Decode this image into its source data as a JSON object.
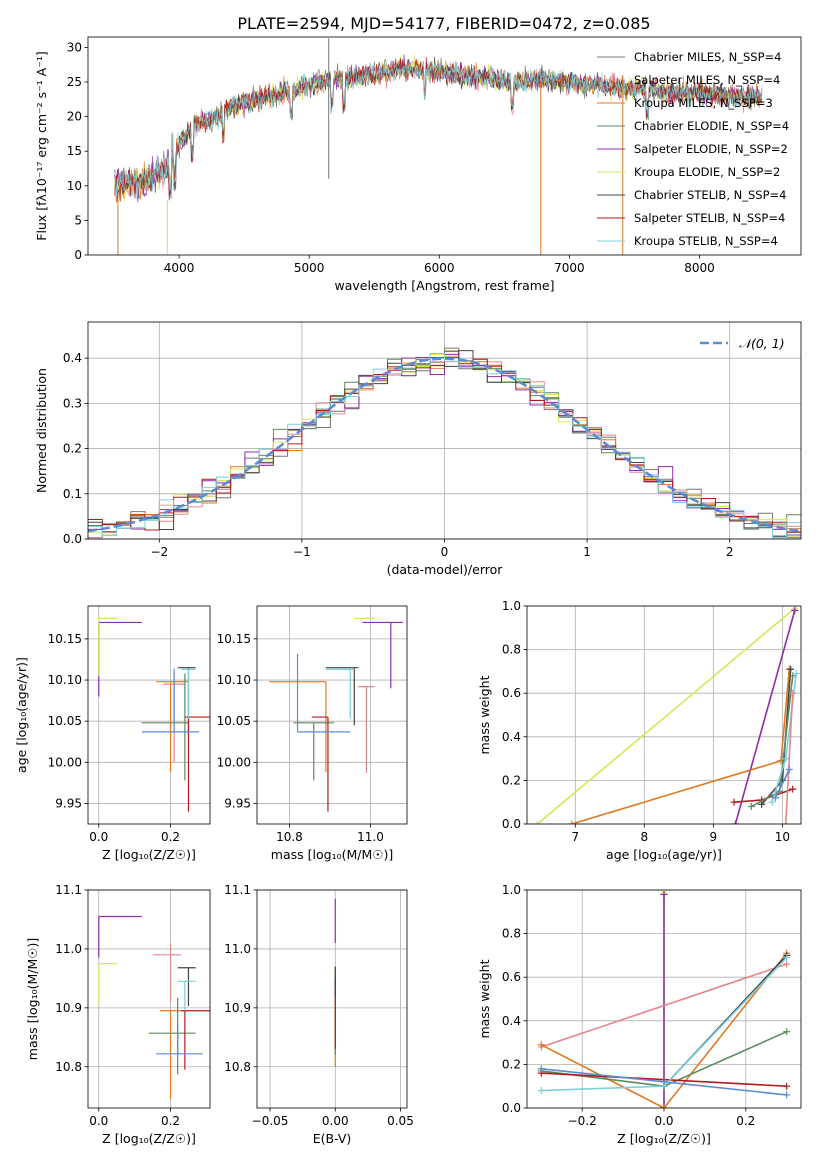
{
  "figure": {
    "title": "PLATE=2594, MJD=54177, FIBERID=0472, z=0.085"
  },
  "chart_data": [
    {
      "id": "spectrum",
      "type": "line",
      "xlabel": "wavelength [Angstrom, rest frame]",
      "ylabel": "Flux [fλ10⁻¹⁷ erg cm⁻² s⁻¹ A⁻¹]",
      "xlim": [
        3300,
        8780
      ],
      "ylim": [
        0,
        31.5
      ],
      "xticks": [
        4000,
        5000,
        6000,
        7000,
        8000
      ],
      "yticks": [
        0,
        5,
        10,
        15,
        20,
        25,
        30
      ],
      "x_range": [
        3505,
        8480
      ],
      "continuum": {
        "x": [
          3505,
          3600,
          3700,
          3800,
          3900,
          4000,
          4100,
          4200,
          4300,
          4400,
          4600,
          4800,
          5000,
          5200,
          5400,
          5600,
          5800,
          6000,
          6200,
          6400,
          6600,
          6800,
          7000,
          7200,
          7400,
          7600,
          7800,
          8000,
          8200,
          8480
        ],
        "y": [
          10.0,
          10.5,
          10.5,
          11.5,
          12.5,
          16.0,
          18.5,
          19.5,
          20.0,
          21.5,
          22.5,
          23.5,
          24.5,
          25.5,
          26.0,
          26.5,
          27.0,
          26.5,
          26.0,
          25.5,
          25.0,
          25.5,
          25.0,
          24.5,
          24.0,
          24.0,
          23.5,
          23.5,
          23.0,
          22.8
        ]
      },
      "series": [
        {
          "name": "Chabrier MILES, N_SSP=4",
          "color": "#777777"
        },
        {
          "name": "Salpeter MILES, N_SSP=4",
          "color": "#e6868f"
        },
        {
          "name": "Kroupa MILES, N_SSP=3",
          "color": "#de7a22"
        },
        {
          "name": "Chabrier ELODIE, N_SSP=4",
          "color": "#5f8a5f"
        },
        {
          "name": "Salpeter ELODIE, N_SSP=2",
          "color": "#8e2fa8"
        },
        {
          "name": "Kroupa ELODIE, N_SSP=2",
          "color": "#d6e65a"
        },
        {
          "name": "Chabrier STELIB, N_SSP=4",
          "color": "#444444"
        },
        {
          "name": "Salpeter STELIB, N_SSP=4",
          "color": "#b01c1c"
        },
        {
          "name": "Kroupa STELIB, N_SSP=4",
          "color": "#7ccfdc"
        }
      ],
      "spikes": [
        {
          "x": 3530,
          "y_from": 9,
          "y_to": 0,
          "color": "#de7a22"
        },
        {
          "x": 3910,
          "y_from": 8,
          "y_to": 0,
          "color": "#d6e65a"
        },
        {
          "x": 5150,
          "y_from": 31.3,
          "y_to": 11.0,
          "color": "#777777"
        },
        {
          "x": 6780,
          "y_from": 25,
          "y_to": 0,
          "color": "#de7a22"
        },
        {
          "x": 7410,
          "y_from": 26,
          "y_to": 0,
          "color": "#de7a22"
        }
      ]
    },
    {
      "id": "residuals",
      "type": "histogram",
      "xlabel": "(data-model)/error",
      "ylabel": "Normed distribution",
      "xlim": [
        -2.5,
        2.5
      ],
      "ylim": [
        0,
        0.48
      ],
      "xticks": [
        -2,
        -1,
        0,
        1,
        2
      ],
      "yticks": [
        0.0,
        0.1,
        0.2,
        0.3,
        0.4
      ],
      "legend": "top-right",
      "reference": {
        "name": "𝒩(0, 1)",
        "color": "#5a8ad8",
        "style": "dashed"
      },
      "series_colors": [
        "#777777",
        "#e6868f",
        "#de7a22",
        "#5f8a5f",
        "#8e2fa8",
        "#d6e65a",
        "#444444",
        "#b01c1c",
        "#7ccfdc"
      ],
      "bin_width": 0.1
    },
    {
      "id": "age-vs-Z",
      "type": "errorbar",
      "xlabel": "Z [log₁₀(Z/Z☉)]",
      "ylabel": "age  [log₁₀(age/yr)]",
      "xlim": [
        -0.03,
        0.31
      ],
      "ylim": [
        9.925,
        10.19
      ],
      "xticks": [
        0.0,
        0.2
      ],
      "yticks": [
        9.95,
        10.0,
        10.05,
        10.1,
        10.15
      ],
      "points": [
        {
          "x": 0.25,
          "y": 10.115,
          "xerr": [
            0.03,
            0.02
          ],
          "yerr": [
            0.08,
            0.0
          ],
          "color": "#444444"
        },
        {
          "x": 0.2,
          "y": 10.098,
          "xerr": [
            0.04,
            0.05
          ],
          "yerr": [
            0.11,
            0.0
          ],
          "color": "#de7a22"
        },
        {
          "x": 0.21,
          "y": 10.095,
          "xerr": [
            0.03,
            0.03
          ],
          "yerr": [
            0.095,
            0.015
          ],
          "color": "#e6868f"
        },
        {
          "x": 0.24,
          "y": 10.048,
          "xerr": [
            0.12,
            0.01
          ],
          "yerr": [
            0.07,
            0.06
          ],
          "color": "#5f8a5f"
        },
        {
          "x": 0.25,
          "y": 10.055,
          "xerr": [
            0.01,
            0.06
          ],
          "yerr": [
            0.115,
            0.0
          ],
          "color": "#b01c1c"
        },
        {
          "x": 0.21,
          "y": 10.037,
          "xerr": [
            0.09,
            0.07
          ],
          "yerr": [
            0.0,
            0.077
          ],
          "color": "#5a8ad8"
        },
        {
          "x": 0.25,
          "y": 10.113,
          "xerr": [
            0.02,
            0.02
          ],
          "yerr": [
            0.06,
            0.0
          ],
          "color": "#7ccfdc"
        },
        {
          "x": 0.0,
          "y": 10.17,
          "xerr": [
            0.0,
            0.12
          ],
          "yerr": [
            0.09,
            0.0
          ],
          "color": "#8e2fa8"
        },
        {
          "x": 0.0,
          "y": 10.175,
          "xerr": [
            0.0,
            0.05
          ],
          "yerr": [
            0.07,
            0.0
          ],
          "color": "#d6e65a"
        }
      ]
    },
    {
      "id": "age-vs-mass",
      "type": "errorbar",
      "xlabel": "mass [log₁₀(M/M☉)]",
      "ylabel": "",
      "xlim": [
        10.72,
        11.09
      ],
      "ylim": [
        9.925,
        10.19
      ],
      "xticks": [
        10.8,
        11.0
      ],
      "yticks": [
        9.95,
        10.0,
        10.05,
        10.1,
        10.15
      ],
      "points": [
        {
          "x": 10.96,
          "y": 10.115,
          "xerr": [
            0.07,
            0.01
          ],
          "yerr": [
            0.07,
            0.0
          ],
          "color": "#444444"
        },
        {
          "x": 10.89,
          "y": 10.098,
          "xerr": [
            0.14,
            0.0
          ],
          "yerr": [
            0.11,
            0.0
          ],
          "color": "#de7a22"
        },
        {
          "x": 10.99,
          "y": 10.092,
          "xerr": [
            0.02,
            0.02
          ],
          "yerr": [
            0.105,
            0.0
          ],
          "color": "#e6868f"
        },
        {
          "x": 10.86,
          "y": 10.048,
          "xerr": [
            0.05,
            0.05
          ],
          "yerr": [
            0.07,
            0.0
          ],
          "color": "#5f8a5f"
        },
        {
          "x": 10.895,
          "y": 10.055,
          "xerr": [
            0.04,
            0.0
          ],
          "yerr": [
            0.115,
            0.0
          ],
          "color": "#b01c1c"
        },
        {
          "x": 10.82,
          "y": 10.037,
          "xerr": [
            0.0,
            0.13
          ],
          "yerr": [
            0.0,
            0.095
          ],
          "color": "#5a8ad8"
        },
        {
          "x": 10.95,
          "y": 10.113,
          "xerr": [
            0.06,
            0.01
          ],
          "yerr": [
            0.06,
            0.0
          ],
          "color": "#7ccfdc"
        },
        {
          "x": 11.05,
          "y": 10.17,
          "xerr": [
            0.07,
            0.03
          ],
          "yerr": [
            0.08,
            0.0
          ],
          "color": "#8e2fa8"
        },
        {
          "x": 10.96,
          "y": 10.175,
          "xerr": [
            0.0,
            0.05
          ],
          "yerr": [
            0.0,
            0.0
          ],
          "color": "#d6e65a"
        }
      ]
    },
    {
      "id": "weight-vs-age",
      "type": "line",
      "xlabel": "age  [log₁₀(age/yr)]",
      "ylabel": "mass weight",
      "xlim": [
        6.3,
        10.27
      ],
      "ylim": [
        0,
        1
      ],
      "xticks": [
        7,
        8,
        9,
        10
      ],
      "yticks": [
        0.0,
        0.2,
        0.4,
        0.6,
        0.8,
        1.0
      ],
      "series": [
        {
          "color": "#d6e65a",
          "points": [
            [
              6.45,
              0.0
            ],
            [
              10.18,
              0.99
            ]
          ]
        },
        {
          "color": "#8e2fa8",
          "points": [
            [
              9.32,
              0.0
            ],
            [
              10.18,
              0.98
            ]
          ]
        },
        {
          "color": "#de7a22",
          "points": [
            [
              6.95,
              0.0
            ],
            [
              9.98,
              0.29
            ],
            [
              10.1,
              0.71
            ]
          ]
        },
        {
          "color": "#b01c1c",
          "points": [
            [
              9.3,
              0.1
            ],
            [
              9.7,
              0.11
            ],
            [
              10.15,
              0.16
            ]
          ]
        },
        {
          "color": "#444444",
          "points": [
            [
              9.7,
              0.09
            ],
            [
              10.0,
              0.2
            ],
            [
              10.12,
              0.71
            ]
          ]
        },
        {
          "color": "#5f8a5f",
          "points": [
            [
              9.55,
              0.08
            ],
            [
              9.96,
              0.15
            ],
            [
              10.15,
              0.68
            ]
          ]
        },
        {
          "color": "#7ccfdc",
          "points": [
            [
              9.85,
              0.1
            ],
            [
              10.05,
              0.3
            ],
            [
              10.2,
              0.69
            ]
          ]
        },
        {
          "color": "#e6868f",
          "points": [
            [
              10.05,
              0.0
            ],
            [
              10.15,
              0.6
            ]
          ]
        },
        {
          "color": "#5a8ad8",
          "points": [
            [
              9.9,
              0.12
            ],
            [
              10.1,
              0.25
            ]
          ]
        }
      ]
    },
    {
      "id": "mass-vs-Z",
      "type": "errorbar",
      "xlabel": "Z [log₁₀(Z/Z☉)]",
      "ylabel": "mass [log₁₀(M/M☉)]",
      "xlim": [
        -0.03,
        0.31
      ],
      "ylim": [
        10.73,
        11.1
      ],
      "xticks": [
        0.0,
        0.2
      ],
      "yticks": [
        10.8,
        10.9,
        11.0,
        11.1
      ],
      "points": [
        {
          "x": 0.25,
          "y": 10.968,
          "xerr": [
            0.03,
            0.02
          ],
          "yerr": [
            0.065,
            0.0
          ],
          "color": "#444444"
        },
        {
          "x": 0.2,
          "y": 10.895,
          "xerr": [
            0.03,
            0.05
          ],
          "yerr": [
            0.15,
            0.0
          ],
          "color": "#de7a22"
        },
        {
          "x": 0.2,
          "y": 10.99,
          "xerr": [
            0.05,
            0.03
          ],
          "yerr": [
            0.08,
            0.02
          ],
          "color": "#e6868f"
        },
        {
          "x": 0.22,
          "y": 10.857,
          "xerr": [
            0.08,
            0.05
          ],
          "yerr": [
            0.07,
            0.06
          ],
          "color": "#5f8a5f"
        },
        {
          "x": 0.24,
          "y": 10.895,
          "xerr": [
            0.01,
            0.07
          ],
          "yerr": [
            0.1,
            0.0
          ],
          "color": "#b01c1c"
        },
        {
          "x": 0.22,
          "y": 10.822,
          "xerr": [
            0.06,
            0.07
          ],
          "yerr": [
            0.0,
            0.05
          ],
          "color": "#5a8ad8"
        },
        {
          "x": 0.24,
          "y": 10.945,
          "xerr": [
            0.02,
            0.03
          ],
          "yerr": [
            0.05,
            0.0
          ],
          "color": "#7ccfdc"
        },
        {
          "x": 0.0,
          "y": 11.055,
          "xerr": [
            0.0,
            0.12
          ],
          "yerr": [
            0.07,
            0.0
          ],
          "color": "#8e2fa8"
        },
        {
          "x": 0.0,
          "y": 10.975,
          "xerr": [
            0.0,
            0.05
          ],
          "yerr": [
            0.07,
            0.0
          ],
          "color": "#d6e65a"
        }
      ]
    },
    {
      "id": "mass-vs-ebv",
      "type": "errorbar",
      "xlabel": "E(B-V)",
      "ylabel": "",
      "xlim": [
        -0.06,
        0.055
      ],
      "ylim": [
        10.73,
        11.1
      ],
      "xticks": [
        -0.05,
        0.0,
        0.05
      ],
      "yticks": [
        10.8,
        10.9,
        11.0,
        11.1
      ],
      "points": [
        {
          "x": 0.0,
          "y": 11.05,
          "xerr": [
            0.0,
            0.0
          ],
          "yerr": [
            0.04,
            0.035
          ],
          "color": "#8e2fa8"
        },
        {
          "x": 0.0,
          "y": 10.97,
          "xerr": [
            0.0,
            0.0
          ],
          "yerr": [
            0.04,
            0.0
          ],
          "color": "#d6e65a"
        },
        {
          "x": 0.0,
          "y": 10.9,
          "xerr": [
            0.0,
            0.0
          ],
          "yerr": [
            0.1,
            0.07
          ],
          "color": "#de7a22"
        },
        {
          "x": 0.0,
          "y": 10.86,
          "xerr": [
            0.0,
            0.0
          ],
          "yerr": [
            0.04,
            0.1
          ],
          "color": "#5f8a5f"
        },
        {
          "x": 0.0,
          "y": 10.87,
          "xerr": [
            0.0,
            0.0
          ],
          "yerr": [
            0.04,
            0.08
          ],
          "color": "#b01c1c"
        },
        {
          "x": 0.0,
          "y": 10.95,
          "xerr": [
            0.0,
            0.0
          ],
          "yerr": [
            0.03,
            0.02
          ],
          "color": "#444444"
        }
      ]
    },
    {
      "id": "weight-vs-Z",
      "type": "line",
      "xlabel": "Z [log₁₀(Z/Z☉)]",
      "ylabel": "mass weight",
      "xlim": [
        -0.335,
        0.335
      ],
      "ylim": [
        0,
        1
      ],
      "xticks": [
        -0.2,
        0.0,
        0.2
      ],
      "yticks": [
        0.0,
        0.2,
        0.4,
        0.6,
        0.8,
        1.0
      ],
      "series": [
        {
          "color": "#d6e65a",
          "points": [
            [
              0.0,
              0.0
            ],
            [
              0.0,
              0.99
            ]
          ]
        },
        {
          "color": "#8e2fa8",
          "points": [
            [
              0.0,
              0.0
            ],
            [
              0.0,
              0.98
            ]
          ]
        },
        {
          "color": "#e6868f",
          "points": [
            [
              -0.3,
              0.28
            ],
            [
              0.3,
              0.66
            ]
          ]
        },
        {
          "color": "#de7a22",
          "points": [
            [
              -0.3,
              0.29
            ],
            [
              0.0,
              0.0
            ],
            [
              0.3,
              0.71
            ]
          ]
        },
        {
          "color": "#5f8a5f",
          "points": [
            [
              -0.3,
              0.17
            ],
            [
              0.0,
              0.1
            ],
            [
              0.3,
              0.35
            ]
          ]
        },
        {
          "color": "#b01c1c",
          "points": [
            [
              -0.3,
              0.16
            ],
            [
              0.3,
              0.1
            ]
          ]
        },
        {
          "color": "#5a8ad8",
          "points": [
            [
              -0.3,
              0.18
            ],
            [
              0.0,
              0.12
            ],
            [
              0.3,
              0.06
            ]
          ]
        },
        {
          "color": "#444444",
          "points": [
            [
              0.0,
              0.1
            ],
            [
              0.3,
              0.7
            ]
          ]
        },
        {
          "color": "#7ccfdc",
          "points": [
            [
              -0.3,
              0.08
            ],
            [
              0.0,
              0.1
            ],
            [
              0.3,
              0.69
            ]
          ]
        }
      ]
    }
  ]
}
